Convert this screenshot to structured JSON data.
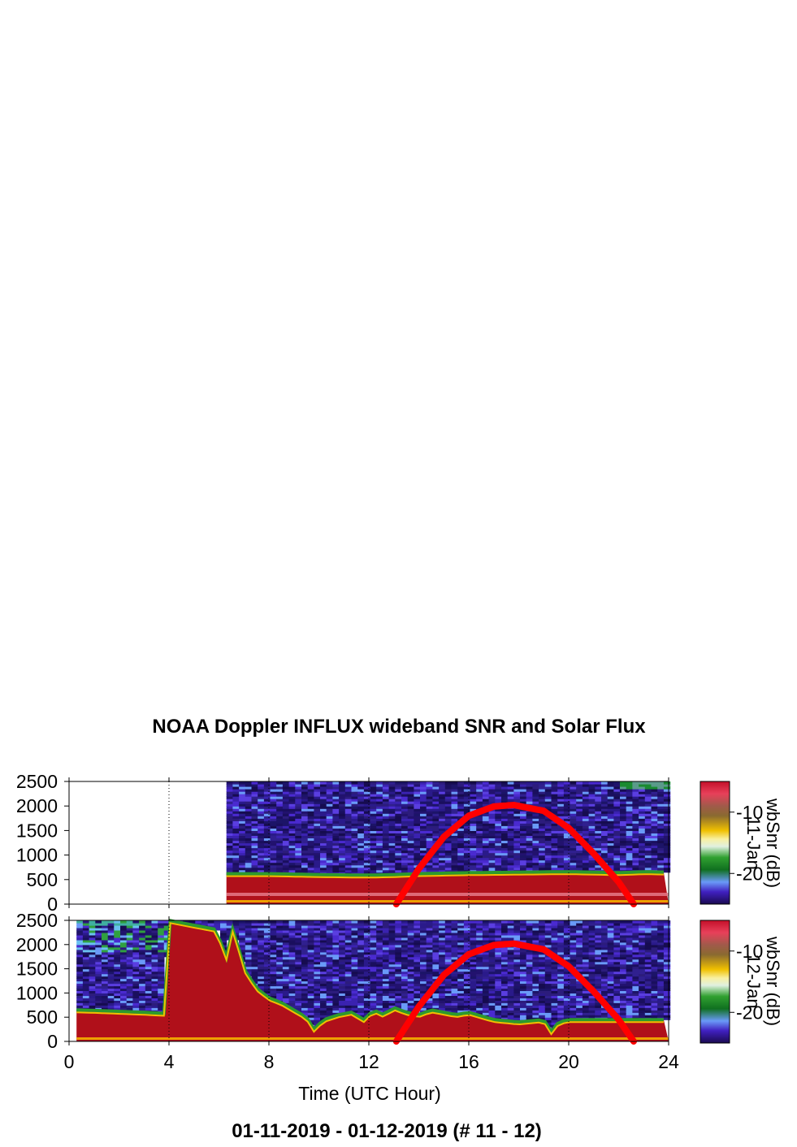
{
  "chart_data": [
    {
      "type": "heatmap",
      "title": "NOAA Doppler INFLUX wideband SNR and Solar Flux",
      "panel_label": "11-Jan",
      "xlim": [
        0,
        24
      ],
      "ylim": [
        0,
        2500
      ],
      "xticks": [
        0,
        4,
        8,
        12,
        16,
        20,
        24
      ],
      "yticks": [
        0,
        500,
        1000,
        1500,
        2000,
        2500
      ],
      "vertical_grid": "dotted",
      "data_start_hour": 6.3,
      "colorbar": {
        "label": "wbSnr (dB)",
        "ticks": [
          -10,
          -20
        ],
        "range": [
          -25,
          -5
        ]
      },
      "series": [
        {
          "kind": "strong_band_top",
          "x": [
            6.3,
            8,
            10,
            12,
            13,
            14,
            16,
            18,
            20,
            22,
            23,
            24
          ],
          "y": [
            620,
            620,
            600,
            590,
            600,
            620,
            640,
            650,
            660,
            640,
            660,
            650
          ]
        },
        {
          "kind": "solar_flux_curve",
          "x": [
            13.1,
            14,
            15,
            16,
            17,
            17.8,
            19,
            20,
            21,
            22,
            22.6
          ],
          "y": [
            0,
            720,
            1370,
            1800,
            1990,
            2020,
            1900,
            1550,
            1030,
            450,
            0
          ]
        }
      ]
    },
    {
      "type": "heatmap",
      "panel_label": "12-Jan",
      "xlim": [
        0,
        24
      ],
      "ylim": [
        0,
        2500
      ],
      "xticks": [
        0,
        4,
        8,
        12,
        16,
        20,
        24
      ],
      "yticks": [
        0,
        500,
        1000,
        1500,
        2000,
        2500
      ],
      "vertical_grid": "dotted",
      "data_start_hour": 0.3,
      "colorbar": {
        "label": "wbSnr (dB)",
        "ticks": [
          -10,
          -20
        ],
        "range": [
          -25,
          -5
        ]
      },
      "series": [
        {
          "kind": "strong_band_top",
          "x": [
            0.3,
            1,
            2,
            3,
            3.8,
            4,
            5,
            6,
            6.2,
            6.5,
            6.8,
            7,
            7.5,
            8,
            8.5,
            9,
            9.5,
            9.8,
            10.2,
            10.8,
            11.3,
            11.8,
            12.2,
            12.6,
            13,
            13.5,
            14,
            14.5,
            15,
            15.5,
            16,
            17,
            18,
            19,
            19.3,
            19.6,
            20,
            21,
            22,
            23,
            24
          ],
          "y": [
            650,
            640,
            620,
            600,
            580,
            2500,
            2400,
            2300,
            1400,
            2400,
            1900,
            1500,
            1100,
            900,
            800,
            650,
            500,
            250,
            450,
            550,
            600,
            450,
            650,
            550,
            700,
            600,
            550,
            650,
            600,
            550,
            600,
            450,
            400,
            450,
            200,
            400,
            450,
            450,
            450,
            450,
            450
          ]
        },
        {
          "kind": "solar_flux_curve",
          "x": [
            13.1,
            14,
            15,
            16,
            17,
            17.8,
            19,
            20,
            21,
            22,
            22.6
          ],
          "y": [
            0,
            720,
            1370,
            1800,
            1990,
            2020,
            1900,
            1550,
            1030,
            450,
            0
          ]
        }
      ]
    }
  ],
  "xlabel": "Time (UTC Hour)",
  "footer": "01-11-2019 - 01-12-2019   (# 11 - 12)",
  "colors": {
    "flux_curve": "#ff0000",
    "strong_band": "#b0101a",
    "background_noise": "#2a1a88"
  }
}
